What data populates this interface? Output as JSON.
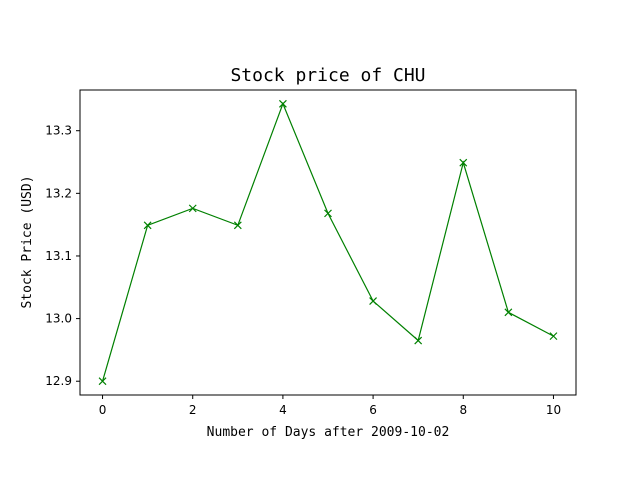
{
  "chart_data": {
    "type": "line",
    "title": "Stock price of CHU",
    "xlabel": "Number of Days after 2009-10-02",
    "ylabel": "Stock Price (USD)",
    "x": [
      0,
      1,
      2,
      3,
      4,
      5,
      6,
      7,
      8,
      9,
      10
    ],
    "series": [
      {
        "values": [
          12.9,
          13.149,
          13.176,
          13.149,
          13.343,
          13.168,
          13.028,
          12.965,
          13.249,
          13.01,
          12.972
        ],
        "color": "#008000",
        "marker": "x"
      }
    ],
    "xlim": [
      -0.5,
      10.5
    ],
    "ylim": [
      12.878,
      13.365
    ],
    "xticks": [
      0,
      2,
      4,
      6,
      8,
      10
    ],
    "xtick_labels": [
      "0",
      "2",
      "4",
      "6",
      "8",
      "10"
    ],
    "yticks": [
      12.9,
      13.0,
      13.1,
      13.2,
      13.3
    ],
    "ytick_labels": [
      "12.9",
      "13.0",
      "13.1",
      "13.2",
      "13.3"
    ],
    "grid": false,
    "legend": false
  }
}
